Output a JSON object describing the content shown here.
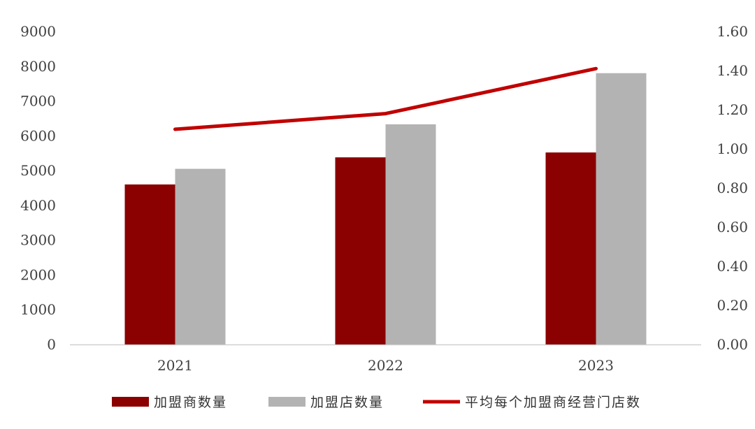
{
  "chart_data": {
    "type": "bar",
    "categories": [
      "2021",
      "2022",
      "2023"
    ],
    "series": [
      {
        "name": "加盟商数量",
        "kind": "bar",
        "axis": "left",
        "color": "#8B0000",
        "values": [
          4600,
          5380,
          5520
        ]
      },
      {
        "name": "加盟店数量",
        "kind": "bar",
        "axis": "left",
        "color": "#B3B3B3",
        "values": [
          5050,
          6330,
          7800
        ]
      },
      {
        "name": "平均每个加盟商经营门店数",
        "kind": "line",
        "axis": "right",
        "color": "#C00000",
        "values": [
          1.1,
          1.18,
          1.41
        ]
      }
    ],
    "y_left": {
      "ylim": [
        0,
        9000
      ],
      "ticks": [
        "0",
        "1000",
        "2000",
        "3000",
        "4000",
        "5000",
        "6000",
        "7000",
        "8000",
        "9000"
      ]
    },
    "y_right": {
      "ylim": [
        0,
        1.6
      ],
      "ticks": [
        "0.00",
        "0.20",
        "0.40",
        "0.60",
        "0.80",
        "1.00",
        "1.20",
        "1.40",
        "1.60"
      ]
    },
    "grid": false,
    "legend_position": "bottom"
  }
}
